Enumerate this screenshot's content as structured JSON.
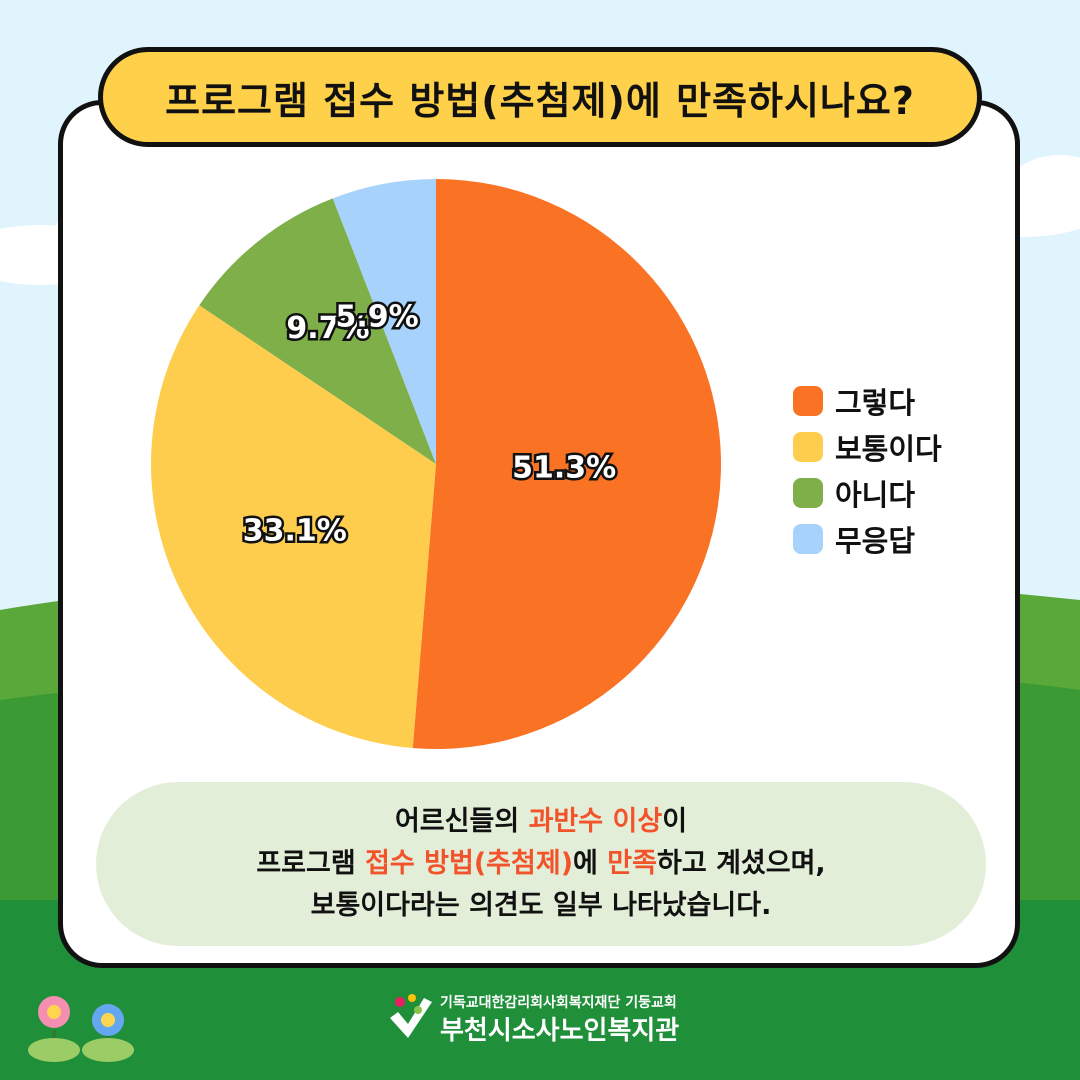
{
  "title": "프로그램 접수 방법(추첨제)에 만족하시나요?",
  "chart_data": {
    "type": "pie",
    "title": "프로그램 접수 방법(추첨제)에 만족하시나요?",
    "categories": [
      "그렇다",
      "보통이다",
      "아니다",
      "무응답"
    ],
    "values": [
      51.3,
      33.1,
      9.7,
      5.9
    ],
    "value_labels": [
      "51.3%",
      "33.1%",
      "9.7%",
      "5.9%"
    ],
    "colors": [
      "#fa7325",
      "#ffcd4d",
      "#7eaf49",
      "#a7d2fb"
    ],
    "legend_position": "right"
  },
  "summary": {
    "line1_a": "어르신들의 ",
    "line1_b": "과반수 이상",
    "line1_c": "이",
    "line2_a": "프로그램 ",
    "line2_b": "접수 방법(추첨제)",
    "line2_c": "에 ",
    "line2_d": "만족",
    "line2_e": "하고 계셨으며,",
    "line3": "보통이다라는 의견도 일부 나타났습니다."
  },
  "footer": {
    "org": "기독교대한감리회사회복지재단  기둥교회",
    "name": "부천시소사노인복지관"
  }
}
